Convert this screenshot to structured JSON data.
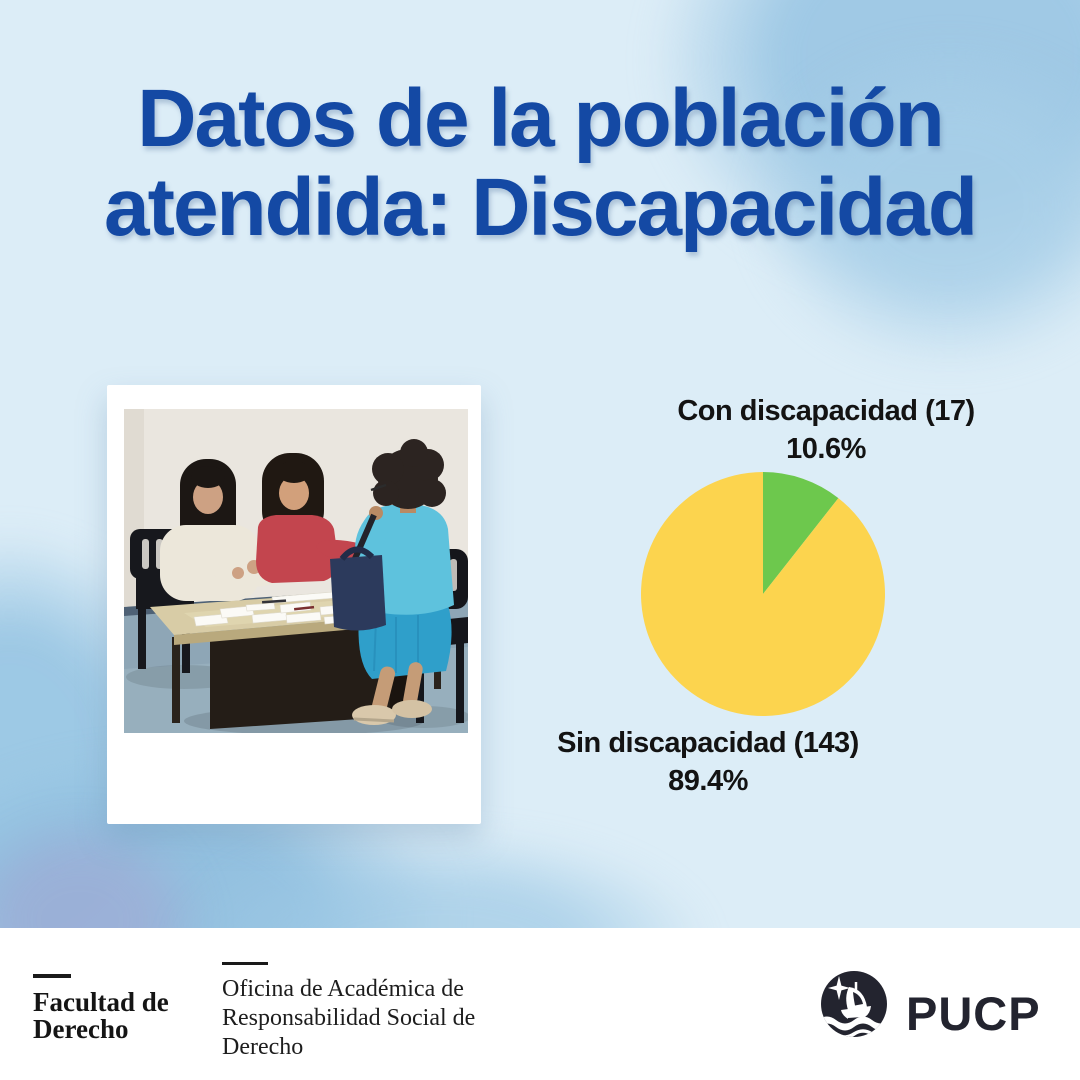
{
  "page": {
    "background_color": "#dcedf7",
    "watercolor_color": "#a9cfe6",
    "footer_background": "#ffffff"
  },
  "title": {
    "line1": "Datos de la población",
    "line2": "atendida: Discapacidad",
    "color": "#1449a4"
  },
  "photo": {
    "description": "Dos asesoras atienden a una señora sentada a una mesa con documentos"
  },
  "chart_data": {
    "type": "pie",
    "title": "",
    "start_angle_deg": 0,
    "direction": "clockwise",
    "legend_position": "labels-outside",
    "slices": [
      {
        "label": "Con discapacidad",
        "count": 17,
        "percent": 10.6,
        "color": "#6dc84d",
        "label_display": "Con discapacidad (17)",
        "percent_display": "10.6%"
      },
      {
        "label": "Sin discapacidad",
        "count": 143,
        "percent": 89.4,
        "color": "#fcd44e",
        "label_display": "Sin discapacidad (143)",
        "percent_display": "89.4%"
      }
    ]
  },
  "footer": {
    "faculty_line1": "Facultad de",
    "faculty_line2": "Derecho",
    "office": "Oficina de Académica de Responsabilidad Social de Derecho",
    "brand": "PUCP",
    "brand_color": "#23242f"
  }
}
